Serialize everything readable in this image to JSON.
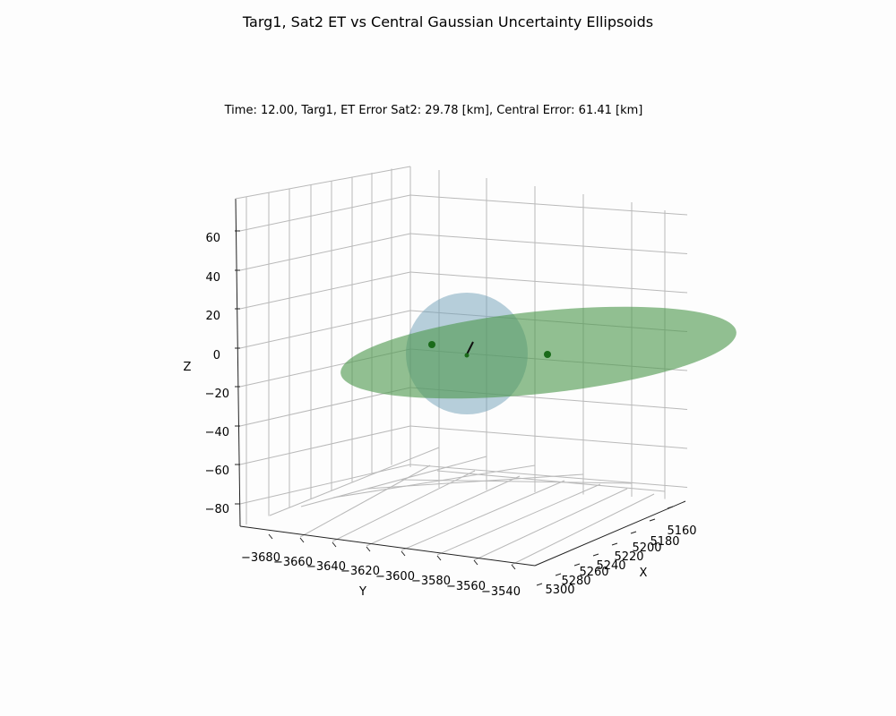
{
  "chart_data": {
    "type": "scatter",
    "title": "Targ1, Sat2 ET vs Central Gaussian Uncertainty Ellipsoids",
    "subtitle": "Time: 12.00, Targ1, ET Error Sat2: 29.78 [km], Central Error: 61.41 [km]",
    "xlabel": "X",
    "ylabel": "Y",
    "zlabel": "Z",
    "x_ticks": [
      "5160",
      "5180",
      "5200",
      "5220",
      "5240",
      "5260",
      "5280",
      "5300"
    ],
    "y_ticks": [
      "−3680",
      "−3660",
      "−3640",
      "−3620",
      "−3600",
      "−3580",
      "−3560",
      "−3540"
    ],
    "z_ticks": [
      "60",
      "40",
      "20",
      "0",
      "−20",
      "−40",
      "−60",
      "−80"
    ],
    "grid": true,
    "colors": {
      "et_ellipsoid": "#6f9fb8",
      "central_ellipsoid": "#4f9a4f",
      "points": "#1a6b1a",
      "velocity_line": "#111111"
    }
  }
}
